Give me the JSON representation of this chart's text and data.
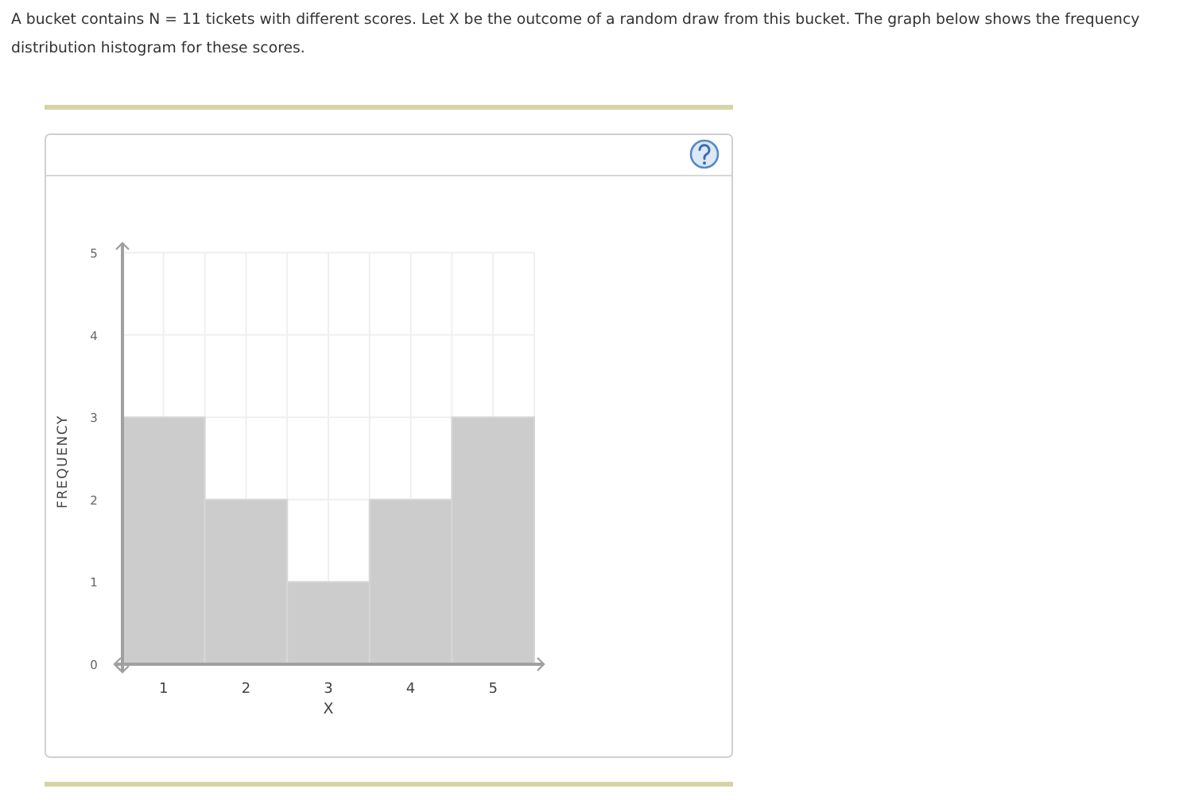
{
  "chart_data": {
    "type": "histogram",
    "title": "A bucket contains N = 11 tickets with different scores. Let X be the outcome of a random draw from this bucket. The graph below shows the frequency distribution histogram for these scores.",
    "xlabel": "X",
    "ylabel": "FREQUENCY",
    "bins": [
      0.5,
      1.5,
      2.5,
      3.5,
      4.5,
      5.5
    ],
    "values": [
      3,
      2,
      1,
      2,
      3
    ],
    "color": "#cccccc",
    "xlim": [
      0.5,
      5.5
    ],
    "ylim": [
      0,
      5
    ],
    "xticks": [
      {
        "value": 0.5,
        "label": null
      },
      1,
      {
        "value": 1.5,
        "label": null
      },
      2,
      {
        "value": 2.5,
        "label": null
      },
      3,
      {
        "value": 3.5,
        "label": null
      },
      4,
      {
        "value": 4.5,
        "label": null
      },
      5,
      {
        "value": 5.5,
        "label": null
      }
    ],
    "yticks": [
      0,
      1,
      2,
      3,
      4,
      5
    ],
    "grid": true
  }
}
